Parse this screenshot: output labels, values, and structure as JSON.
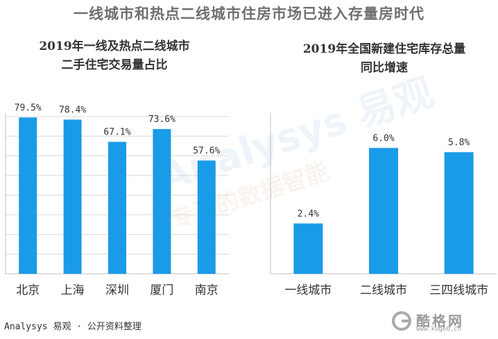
{
  "title": "一线城市和热点二线城市住房市场已进入存量房时代",
  "source": "Analysys 易观 · 公开资料整理",
  "watermark": {
    "brand": "Analysys 易观",
    "slogan": "专注的数据智能"
  },
  "site_logo": {
    "name": "酷格网",
    "url": "www.kuge6.cn"
  },
  "colors": {
    "bar": "#1a9be8",
    "grid": "#d9d9d9",
    "axis": "#bfbfbf"
  },
  "chart_data": [
    {
      "type": "bar",
      "title": [
        "2019年一线及热点二线城市",
        "二手住宅交易量占比"
      ],
      "xlabel": "",
      "ylabel": "",
      "categories": [
        "北京",
        "上海",
        "深圳",
        "厦门",
        "南京"
      ],
      "values": [
        79.5,
        78.4,
        67.1,
        73.6,
        57.6
      ],
      "value_labels": [
        "79.5%",
        "78.4%",
        "67.1%",
        "73.6%",
        "57.6%"
      ],
      "ylim": [
        0,
        80
      ],
      "grid": true,
      "legend": "none"
    },
    {
      "type": "bar",
      "title": [
        "2019年全国新建住宅库存总量",
        "同比增速"
      ],
      "xlabel": "",
      "ylabel": "",
      "categories": [
        "一线城市",
        "二线城市",
        "三四线城市"
      ],
      "values": [
        2.4,
        6.0,
        5.8
      ],
      "value_labels": [
        "2.4%",
        "6.0%",
        "5.8%"
      ],
      "ylim": [
        0,
        7.5
      ],
      "grid": false,
      "legend": "none"
    }
  ]
}
